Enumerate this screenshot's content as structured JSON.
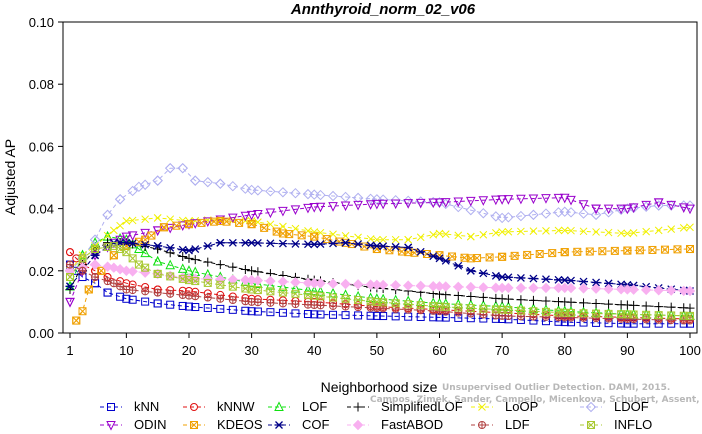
{
  "chart_data": {
    "type": "line",
    "title": "Annthyroid_norm_02_v06",
    "xlabel": "Neighborhood size",
    "ylabel": "Adjusted AP",
    "xlim": [
      1,
      100
    ],
    "ylim": [
      0,
      0.1
    ],
    "xticks": [
      "1",
      "10",
      "20",
      "30",
      "40",
      "50",
      "60",
      "70",
      "80",
      "90",
      "100"
    ],
    "yticks": [
      "0.00",
      "0.02",
      "0.04",
      "0.06",
      "0.08",
      "0.10"
    ],
    "grid": false,
    "legend_position": "bottom",
    "series": [
      {
        "name": "kNN",
        "color": "#0000cc",
        "marker": "square",
        "points": [
          [
            1,
            0.022
          ],
          [
            2,
            0.02
          ],
          [
            3,
            0.018
          ],
          [
            5,
            0.016
          ],
          [
            7,
            0.013
          ],
          [
            10,
            0.011
          ],
          [
            15,
            0.0095
          ],
          [
            20,
            0.0085
          ],
          [
            30,
            0.007
          ],
          [
            40,
            0.006
          ],
          [
            50,
            0.0055
          ],
          [
            60,
            0.005
          ],
          [
            70,
            0.0045
          ],
          [
            80,
            0.0035
          ],
          [
            90,
            0.003
          ],
          [
            100,
            0.003
          ]
        ]
      },
      {
        "name": "kNNW",
        "color": "#e01010",
        "marker": "circle",
        "points": [
          [
            1,
            0.026
          ],
          [
            2,
            0.024
          ],
          [
            3,
            0.022
          ],
          [
            5,
            0.02
          ],
          [
            7,
            0.018
          ],
          [
            10,
            0.016
          ],
          [
            15,
            0.014
          ],
          [
            20,
            0.0135
          ],
          [
            30,
            0.011
          ],
          [
            40,
            0.01
          ],
          [
            50,
            0.0085
          ],
          [
            60,
            0.0075
          ],
          [
            70,
            0.0065
          ],
          [
            80,
            0.0055
          ],
          [
            90,
            0.005
          ],
          [
            100,
            0.0045
          ]
        ]
      },
      {
        "name": "LOF",
        "color": "#10e010",
        "marker": "triangle-up",
        "points": [
          [
            1,
            0.015
          ],
          [
            3,
            0.025
          ],
          [
            5,
            0.029
          ],
          [
            7,
            0.031
          ],
          [
            10,
            0.03
          ],
          [
            12,
            0.027
          ],
          [
            15,
            0.023
          ],
          [
            20,
            0.02
          ],
          [
            30,
            0.016
          ],
          [
            40,
            0.0135
          ],
          [
            50,
            0.011
          ],
          [
            60,
            0.0095
          ],
          [
            70,
            0.0085
          ],
          [
            80,
            0.007
          ],
          [
            90,
            0.006
          ],
          [
            100,
            0.0055
          ]
        ]
      },
      {
        "name": "SimplifiedLOF",
        "color": "#000000",
        "marker": "plus",
        "points": [
          [
            1,
            0.014
          ],
          [
            3,
            0.022
          ],
          [
            5,
            0.027
          ],
          [
            7,
            0.029
          ],
          [
            10,
            0.029
          ],
          [
            15,
            0.027
          ],
          [
            20,
            0.024
          ],
          [
            30,
            0.02
          ],
          [
            40,
            0.017
          ],
          [
            50,
            0.0145
          ],
          [
            60,
            0.0125
          ],
          [
            70,
            0.011
          ],
          [
            80,
            0.01
          ],
          [
            90,
            0.009
          ],
          [
            100,
            0.008
          ]
        ]
      },
      {
        "name": "LoOP",
        "color": "#f0f000",
        "marker": "x",
        "points": [
          [
            1,
            0.02
          ],
          [
            3,
            0.025
          ],
          [
            5,
            0.028
          ],
          [
            8,
            0.033
          ],
          [
            10,
            0.036
          ],
          [
            15,
            0.037
          ],
          [
            20,
            0.036
          ],
          [
            25,
            0.0365
          ],
          [
            30,
            0.036
          ],
          [
            40,
            0.0325
          ],
          [
            50,
            0.03
          ],
          [
            55,
            0.03
          ],
          [
            60,
            0.032
          ],
          [
            65,
            0.031
          ],
          [
            70,
            0.0325
          ],
          [
            80,
            0.033
          ],
          [
            90,
            0.032
          ],
          [
            100,
            0.034
          ]
        ]
      },
      {
        "name": "LDOF",
        "color": "#b0b0f0",
        "marker": "diamond",
        "points": [
          [
            1,
            0.02
          ],
          [
            3,
            0.024
          ],
          [
            5,
            0.03
          ],
          [
            7,
            0.038
          ],
          [
            9,
            0.043
          ],
          [
            12,
            0.047
          ],
          [
            15,
            0.049
          ],
          [
            17,
            0.053
          ],
          [
            19,
            0.053
          ],
          [
            21,
            0.049
          ],
          [
            25,
            0.048
          ],
          [
            30,
            0.046
          ],
          [
            40,
            0.0445
          ],
          [
            50,
            0.043
          ],
          [
            60,
            0.042
          ],
          [
            70,
            0.037
          ],
          [
            75,
            0.038
          ],
          [
            80,
            0.039
          ],
          [
            85,
            0.038
          ],
          [
            90,
            0.04
          ],
          [
            95,
            0.041
          ],
          [
            100,
            0.041
          ]
        ]
      },
      {
        "name": "ODIN",
        "color": "#9900cc",
        "marker": "triangle-down",
        "points": [
          [
            1,
            0.01
          ],
          [
            3,
            0.02
          ],
          [
            5,
            0.025
          ],
          [
            8,
            0.029
          ],
          [
            10,
            0.031
          ],
          [
            15,
            0.033
          ],
          [
            20,
            0.035
          ],
          [
            30,
            0.038
          ],
          [
            40,
            0.0405
          ],
          [
            50,
            0.0415
          ],
          [
            60,
            0.042
          ],
          [
            70,
            0.043
          ],
          [
            80,
            0.0435
          ],
          [
            85,
            0.04
          ],
          [
            90,
            0.04
          ],
          [
            95,
            0.042
          ],
          [
            100,
            0.04
          ]
        ]
      },
      {
        "name": "KDEOS",
        "color": "#f0a000",
        "marker": "square-x",
        "points": [
          [
            2,
            0.004
          ],
          [
            3,
            0.007
          ],
          [
            4,
            0.014
          ],
          [
            6,
            0.02
          ],
          [
            8,
            0.025
          ],
          [
            10,
            0.028
          ],
          [
            13,
            0.03
          ],
          [
            16,
            0.034
          ],
          [
            20,
            0.035
          ],
          [
            25,
            0.036
          ],
          [
            30,
            0.035
          ],
          [
            35,
            0.032
          ],
          [
            40,
            0.031
          ],
          [
            45,
            0.029
          ],
          [
            50,
            0.027
          ],
          [
            55,
            0.026
          ],
          [
            60,
            0.025
          ],
          [
            65,
            0.024
          ],
          [
            70,
            0.0245
          ],
          [
            80,
            0.026
          ],
          [
            90,
            0.0265
          ],
          [
            100,
            0.027
          ]
        ]
      },
      {
        "name": "COF",
        "color": "#000088",
        "marker": "star",
        "points": [
          [
            1,
            0.015
          ],
          [
            3,
            0.02
          ],
          [
            5,
            0.025
          ],
          [
            8,
            0.029
          ],
          [
            10,
            0.029
          ],
          [
            15,
            0.028
          ],
          [
            20,
            0.0265
          ],
          [
            25,
            0.029
          ],
          [
            30,
            0.029
          ],
          [
            40,
            0.0285
          ],
          [
            45,
            0.029
          ],
          [
            50,
            0.028
          ],
          [
            55,
            0.0275
          ],
          [
            60,
            0.024
          ],
          [
            65,
            0.02
          ],
          [
            70,
            0.018
          ],
          [
            80,
            0.017
          ],
          [
            90,
            0.0155
          ],
          [
            100,
            0.0135
          ]
        ]
      },
      {
        "name": "FastABOD",
        "color": "#f8b0f0",
        "marker": "diamond-filled",
        "points": [
          [
            1,
            0.02
          ],
          [
            3,
            0.021
          ],
          [
            5,
            0.022
          ],
          [
            8,
            0.021
          ],
          [
            10,
            0.02
          ],
          [
            15,
            0.019
          ],
          [
            20,
            0.0175
          ],
          [
            30,
            0.017
          ],
          [
            40,
            0.016
          ],
          [
            50,
            0.0155
          ],
          [
            60,
            0.015
          ],
          [
            70,
            0.0145
          ],
          [
            80,
            0.0145
          ],
          [
            90,
            0.014
          ],
          [
            100,
            0.0135
          ]
        ]
      },
      {
        "name": "LDF",
        "color": "#b04040",
        "marker": "circle-dot",
        "points": [
          [
            1,
            0.022
          ],
          [
            3,
            0.02
          ],
          [
            5,
            0.018
          ],
          [
            8,
            0.016
          ],
          [
            10,
            0.014
          ],
          [
            15,
            0.013
          ],
          [
            20,
            0.012
          ],
          [
            30,
            0.01
          ],
          [
            40,
            0.009
          ],
          [
            50,
            0.008
          ],
          [
            60,
            0.007
          ],
          [
            70,
            0.0055
          ],
          [
            80,
            0.005
          ],
          [
            90,
            0.0045
          ],
          [
            100,
            0.004
          ]
        ]
      },
      {
        "name": "INFLO",
        "color": "#a8c830",
        "marker": "square-x",
        "points": [
          [
            1,
            0.018
          ],
          [
            3,
            0.024
          ],
          [
            5,
            0.027
          ],
          [
            8,
            0.028
          ],
          [
            10,
            0.026
          ],
          [
            12,
            0.022
          ],
          [
            15,
            0.019
          ],
          [
            20,
            0.017
          ],
          [
            30,
            0.014
          ],
          [
            40,
            0.012
          ],
          [
            50,
            0.01
          ],
          [
            60,
            0.0085
          ],
          [
            70,
            0.0075
          ],
          [
            80,
            0.0065
          ],
          [
            90,
            0.006
          ],
          [
            100,
            0.0055
          ]
        ]
      }
    ]
  },
  "watermark": {
    "line1": "Unsupervised Outlier Detection. DAMI, 2015.",
    "line2": "Campos, Zimek, Sander, Campello, Micenkova, Schubert, Assent, Houle"
  }
}
